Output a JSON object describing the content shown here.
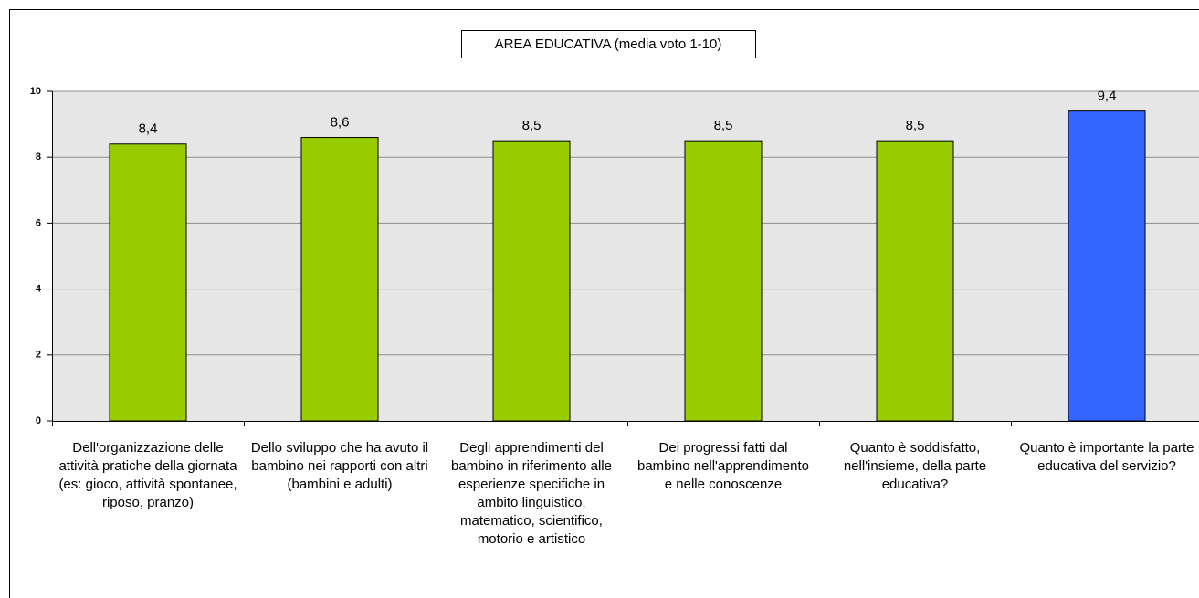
{
  "chart_data": {
    "type": "bar",
    "title": "AREA EDUCATIVA (media voto 1-10)",
    "categories": [
      "Dell'organizzazione delle attività pratiche della giornata (es: gioco, attività spontanee, riposo, pranzo)",
      "Dello sviluppo che ha avuto il bambino nei rapporti con altri (bambini e adulti)",
      "Degli apprendimenti del bambino in riferimento alle esperienze specifiche in ambito linguistico, matematico, scientifico, motorio e artistico",
      "Dei progressi fatti dal bambino nell'apprendimento e nelle conoscenze",
      "Quanto è soddisfatto, nell'insieme, della parte educativa?",
      "Quanto è importante la parte educativa del servizio?"
    ],
    "values": [
      8.4,
      8.6,
      8.5,
      8.5,
      8.5,
      9.4
    ],
    "value_labels": [
      "8,4",
      "8,6",
      "8,5",
      "8,5",
      "8,5",
      "9,4"
    ],
    "colors": [
      "#99cc00",
      "#99cc00",
      "#99cc00",
      "#99cc00",
      "#99cc00",
      "#3366ff"
    ],
    "ylim": [
      0,
      10
    ],
    "yticks": [
      0,
      2,
      4,
      6,
      8,
      10
    ],
    "grid": true
  }
}
